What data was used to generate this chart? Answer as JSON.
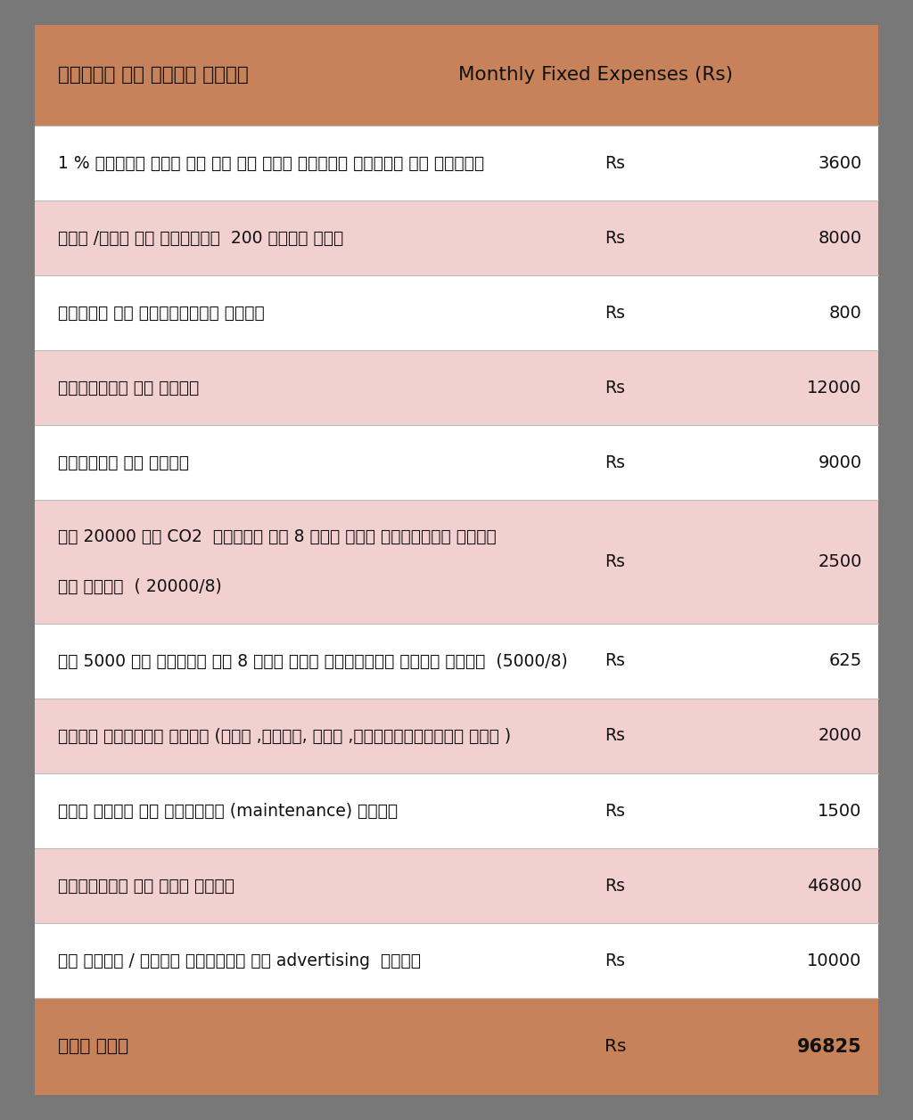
{
  "title_hindi": "महिने का नियत खर्च",
  "title_english": "Monthly Fixed Expenses (Rs)",
  "rows": [
    {
      "label_lines": [
        "1 % प्रति माह की दर से कुल पूंजी निवेश पर ब्याज"
      ],
      "rs": "Rs",
      "amount": "3600",
      "bg": "white"
    },
    {
      "label_lines": [
        "भवन /जगह का किराया  200 वर्ग फूट"
      ],
      "rs": "Rs",
      "amount": "8000",
      "bg": "pink"
    },
    {
      "label_lines": [
        "बिजली का न्यून्तम खर्च"
      ],
      "rs": "Rs",
      "amount": "800",
      "bg": "white"
    },
    {
      "label_lines": [
        "डिजाइनर का वेतन"
      ],
      "rs": "Rs",
      "amount": "12000",
      "bg": "pink"
    },
    {
      "label_lines": [
        "हेल्पर का वेतन"
      ],
      "rs": "Rs",
      "amount": "9000",
      "bg": "white"
    },
    {
      "label_lines": [
        "रु 20000 की CO2  ट्यूब हर 8 माह में रिप्लेस करने",
        "का खर्च  ( 20000/8)"
      ],
      "rs": "Rs",
      "amount": "2500",
      "bg": "pink"
    },
    {
      "label_lines": [
        "रु 5000 की लेन्स हर 8 माह में रिप्लेस करने खर्च  (5000/8)"
      ],
      "rs": "Rs",
      "amount": "625",
      "bg": "white"
    },
    {
      "label_lines": [
        "अन्य परचूरन खर्च (चाय ,पानी, फोन ,लोजिस्टिक्स आदि )"
      ],
      "rs": "Rs",
      "amount": "2000",
      "bg": "pink"
    },
    {
      "label_lines": [
        "वेब साईट का रखरखाव (maintenance) खर्च"
      ],
      "rs": "Rs",
      "amount": "1500",
      "bg": "white"
    },
    {
      "label_lines": [
        "मटीरीअल की कुल लागत"
      ],
      "rs": "Rs",
      "amount": "46800",
      "bg": "pink"
    },
    {
      "label_lines": [
        "ऑन लाईन / सोशल मीडिया पर advertising  खर्च"
      ],
      "rs": "Rs",
      "amount": "10000",
      "bg": "white"
    }
  ],
  "total_label": "कुल योग",
  "total_rs": "Rs",
  "total_amount": "96825",
  "header_bg": "#C8825A",
  "total_bg": "#C8825A",
  "pink_bg": "#F2D0D0",
  "white_bg": "#FFFFFF",
  "outer_bg": "#787878",
  "text_color": "#111111"
}
